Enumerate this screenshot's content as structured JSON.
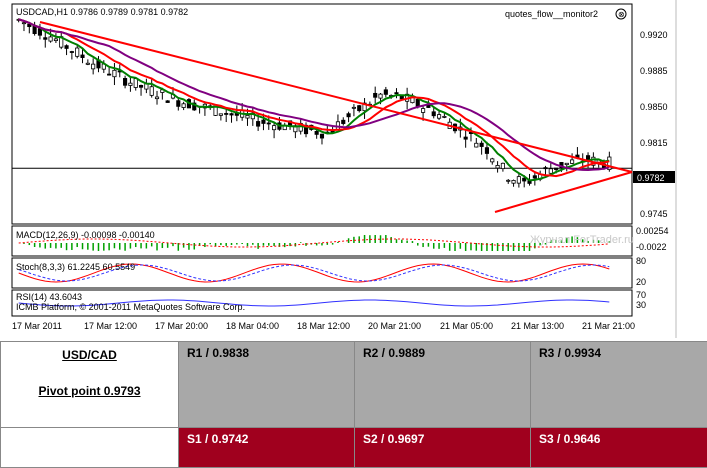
{
  "chart": {
    "header": "USDCAD,H1  0.9786 0.9789 0.9781 0.9782",
    "indicator_name": "quotes_flow__monitor2",
    "current_price": "0.9782",
    "price_labels": [
      "0.9920",
      "0.9885",
      "0.9850",
      "0.9815",
      "0.9782",
      "0.9745"
    ],
    "time_labels": [
      "17 Mar 2011",
      "17 Mar 12:00",
      "17 Mar 20:00",
      "18 Mar 04:00",
      "18 Mar 12:00",
      "20 Mar 21:00",
      "21 Mar 05:00",
      "21 Mar 13:00",
      "21 Mar 21:00"
    ],
    "macd_label": "MACD(12,26,9) -0.00098 -0.00140",
    "macd_scale": [
      "0.00254",
      "-0.0022"
    ],
    "stoch_label": "Stoch(8,3,3) 61.2245 60.5549",
    "stoch_scale": [
      "80",
      "20"
    ],
    "rsi_label": "RSI(14) 43.6043",
    "rsi_scale": [
      "70",
      "30"
    ],
    "copyright": "ICMB Platform, © 2001-2011 MetaQuotes Software Corp.",
    "watermark": "Журнал ForTrader.ru",
    "colors": {
      "bull_candle": "#ffffff",
      "bear_candle": "#000000",
      "ma_fast": "#007f00",
      "ma_mid": "#ff0000",
      "ma_slow": "#800080",
      "trendline": "#ff0000",
      "macd_hist": "#00a000",
      "macd_signal": "#ff0000",
      "stoch_main": "#ff0000",
      "stoch_signal": "#3030ff",
      "rsi_line": "#3030ff"
    }
  },
  "table": {
    "pair": "USD/CAD",
    "pivot": "Pivot point 0.9793",
    "r1": "R1 / 0.9838",
    "r2": "R2 / 0.9889",
    "r3": "R3 / 0.9934",
    "s1": "S1 / 0.9742",
    "s2": "S2 / 0.9697",
    "s3": "S3 / 0.9646"
  }
}
